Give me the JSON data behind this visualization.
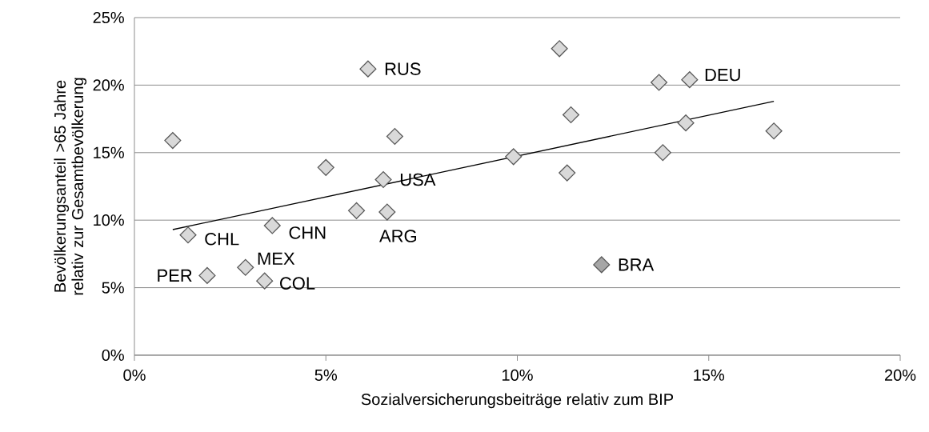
{
  "chart_data": {
    "type": "scatter",
    "xlabel": "Sozialversicherungsbeiträge relativ zum BIP",
    "ylabel": "Bevölkerungsanteil >65 Jahre relativ zur Gesamtbevölkerung",
    "xlim": [
      0,
      20
    ],
    "ylim": [
      0,
      25
    ],
    "xticks": [
      {
        "value": 0,
        "label": "0%"
      },
      {
        "value": 5,
        "label": "5%"
      },
      {
        "value": 10,
        "label": "10%"
      },
      {
        "value": 15,
        "label": "15%"
      },
      {
        "value": 20,
        "label": "20%"
      }
    ],
    "yticks": [
      {
        "value": 0,
        "label": "0%"
      },
      {
        "value": 5,
        "label": "5%"
      },
      {
        "value": 10,
        "label": "10%"
      },
      {
        "value": 15,
        "label": "15%"
      },
      {
        "value": 20,
        "label": "20%"
      },
      {
        "value": 25,
        "label": "25%"
      }
    ],
    "grid": "y",
    "marker": "diamond",
    "series": [
      {
        "color": "#d9d9d9",
        "x": [
          1.0,
          1.4,
          1.9,
          2.9,
          3.4,
          3.6,
          5.0,
          6.1,
          5.8,
          6.5,
          6.6,
          6.8,
          11.1,
          13.7,
          11.4,
          9.9,
          11.3,
          13.8,
          14.5,
          14.4,
          16.7
        ],
        "values": [
          15.9,
          8.9,
          5.9,
          6.5,
          5.5,
          9.6,
          13.9,
          21.2,
          10.7,
          13.0,
          10.6,
          16.2,
          22.7,
          20.2,
          17.8,
          14.7,
          13.5,
          15.0,
          20.4,
          17.2,
          16.6
        ]
      },
      {
        "color": "#a6a6a6",
        "x": [
          12.2
        ],
        "values": [
          6.7
        ]
      },
      {
        "type": "line",
        "color": "#000000",
        "marker": "none",
        "x": [
          1.0,
          16.7
        ],
        "values": [
          9.3,
          18.8
        ]
      }
    ],
    "annotations": [
      {
        "text": "RUS",
        "x": 6.1,
        "y": 21.2
      },
      {
        "text": "DEU",
        "x": 14.5,
        "y": 20.4
      },
      {
        "text": "USA",
        "x": 6.5,
        "y": 13.0
      },
      {
        "text": "CHL",
        "x": 1.4,
        "y": 8.9
      },
      {
        "text": "CHN",
        "x": 3.6,
        "y": 9.6
      },
      {
        "text": "ARG",
        "x": 6.6,
        "y": 10.6
      },
      {
        "text": "MEX",
        "x": 2.9,
        "y": 6.5
      },
      {
        "text": "COL",
        "x": 3.4,
        "y": 5.5
      },
      {
        "text": "PER",
        "x": 1.9,
        "y": 5.9
      },
      {
        "text": "BRA",
        "x": 12.2,
        "y": 6.7
      }
    ]
  }
}
